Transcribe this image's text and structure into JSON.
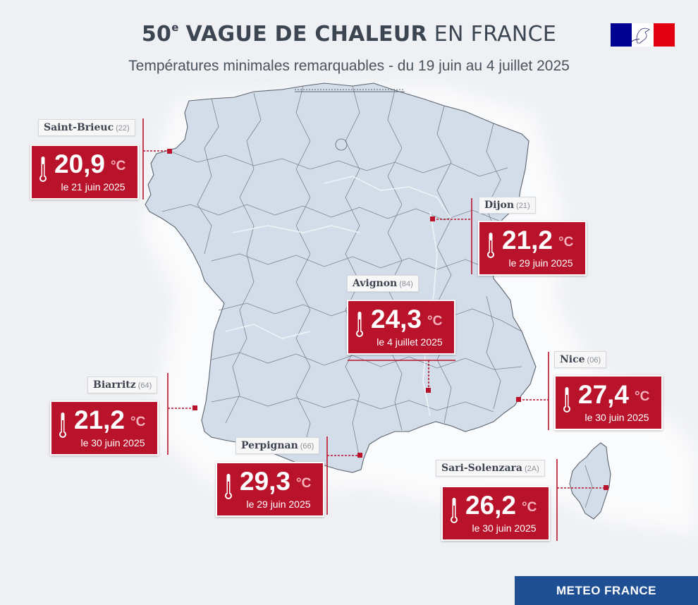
{
  "header": {
    "title_number": "50",
    "title_sup": "e",
    "title_bold": "VAGUE DE CHALEUR",
    "title_light": "EN FRANCE",
    "subtitle": "Températures minimales remarquables - du 19 juin au 4 juillet 2025"
  },
  "logo": {
    "name": "republique-francaise-logo",
    "colors": [
      "#000091",
      "#ffffff",
      "#e1000f"
    ]
  },
  "colors": {
    "box": "#b8132b",
    "land": "#d3dde9",
    "sea": "#eef0f3",
    "border_lines": "#5b6470",
    "footer": "#1f4f93"
  },
  "stations": [
    {
      "city": "Saint-Brieuc",
      "dept": "(22)",
      "temp": "20,9",
      "unit": "°C",
      "date": "le 21 juin 2025"
    },
    {
      "city": "Dijon",
      "dept": "(21)",
      "temp": "21,2",
      "unit": "°C",
      "date": "le 29 juin 2025"
    },
    {
      "city": "Avignon",
      "dept": "(84)",
      "temp": "24,3",
      "unit": "°C",
      "date": "le 4 juillet 2025"
    },
    {
      "city": "Nice",
      "dept": "(06)",
      "temp": "27,4",
      "unit": "°C",
      "date": "le 30 juin 2025"
    },
    {
      "city": "Biarritz",
      "dept": "(64)",
      "temp": "21,2",
      "unit": "°C",
      "date": "le 30 juin 2025"
    },
    {
      "city": "Perpignan",
      "dept": "(66)",
      "temp": "29,3",
      "unit": "°C",
      "date": "le 29 juin 2025"
    },
    {
      "city": "Sari-Solenzara",
      "dept": "(2A)",
      "temp": "26,2",
      "unit": "°C",
      "date": "le 30 juin 2025"
    }
  ],
  "footer": {
    "brand": "METEO FRANCE"
  }
}
